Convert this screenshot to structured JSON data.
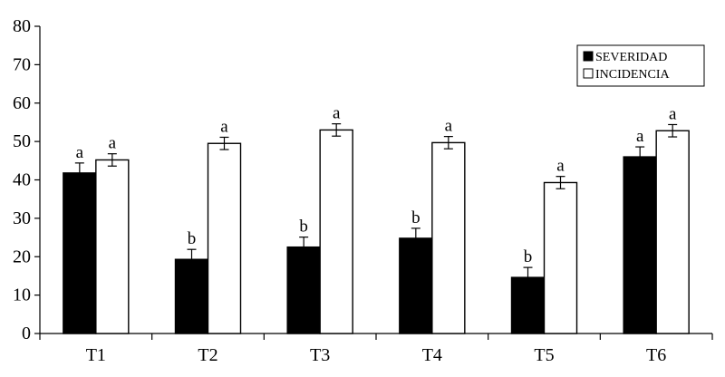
{
  "chart_data": {
    "type": "bar",
    "categories": [
      "T1",
      "T2",
      "T3",
      "T4",
      "T5",
      "T6"
    ],
    "series": [
      {
        "name": "SEVERIDAD",
        "color": "#000000",
        "values": [
          41.8,
          19.3,
          22.5,
          24.8,
          14.6,
          46.0
        ],
        "errors": [
          2.6,
          2.6,
          2.6,
          2.6,
          2.6,
          2.6
        ],
        "labels": [
          "a",
          "b",
          "b",
          "b",
          "b",
          "a"
        ]
      },
      {
        "name": "INCIDENCIA",
        "color": "#ffffff",
        "values": [
          45.2,
          49.5,
          53.0,
          49.7,
          39.3,
          52.8
        ],
        "errors": [
          1.6,
          1.6,
          1.6,
          1.6,
          1.6,
          1.6
        ],
        "labels": [
          "a",
          "a",
          "a",
          "a",
          "a",
          "a"
        ]
      }
    ],
    "ylim": [
      0,
      80
    ],
    "yticks": [
      0,
      10,
      20,
      30,
      40,
      50,
      60,
      70,
      80
    ],
    "legend_position": "top-right",
    "grid": false
  }
}
